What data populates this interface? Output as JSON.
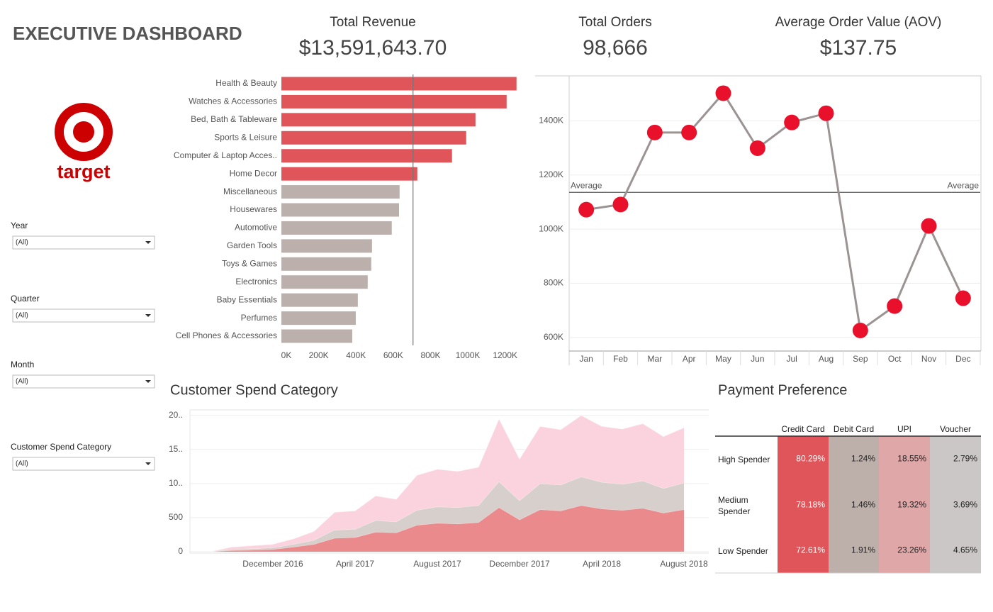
{
  "header": {
    "title": "EXECUTIVE DASHBOARD",
    "logo_text": "target"
  },
  "kpis": [
    {
      "label": "Total Revenue",
      "value": "$13,591,643.70"
    },
    {
      "label": "Total Orders",
      "value": "98,666"
    },
    {
      "label": "Average Order Value (AOV)",
      "value": "$137.75"
    }
  ],
  "filters": [
    {
      "label": "Year",
      "value": "(All)"
    },
    {
      "label": "Quarter",
      "value": "(All)"
    },
    {
      "label": "Month",
      "value": "(All)"
    },
    {
      "label": "Customer Spend Category",
      "value": "(All)"
    }
  ],
  "chart_data": [
    {
      "type": "bar",
      "orientation": "horizontal",
      "categories": [
        "Health & Beauty",
        "Watches & Accessories",
        "Bed, Bath & Tableware",
        "Sports & Leisure",
        "Computer & Laptop Acces..",
        "Home Decor",
        "Miscellaneous",
        "Housewares",
        "Automotive",
        "Garden Tools",
        "Toys & Games",
        "Electronics",
        "Baby Essentials",
        "Perfumes",
        "Cell Phones & Accessories"
      ],
      "values": [
        1261000,
        1208000,
        1041000,
        991000,
        915000,
        729000,
        634000,
        631000,
        592000,
        486000,
        482000,
        463000,
        410000,
        399000,
        380000
      ],
      "colors": [
        "#e05559",
        "#e05559",
        "#e05559",
        "#e05559",
        "#e05559",
        "#e05559",
        "#bbb0ab",
        "#bbb0ab",
        "#bbb0ab",
        "#bbb0ab",
        "#bbb0ab",
        "#bbb0ab",
        "#bbb0ab",
        "#bbb0ab",
        "#bbb0ab"
      ],
      "xlim": [
        0,
        1300000
      ],
      "xticks": [
        {
          "value": 0,
          "label": "0K"
        },
        {
          "value": 200000,
          "label": "200K"
        },
        {
          "value": 400000,
          "label": "400K"
        },
        {
          "value": 600000,
          "label": "600K"
        },
        {
          "value": 800000,
          "label": "800K"
        },
        {
          "value": 1000000,
          "label": "1000K"
        },
        {
          "value": 1200000,
          "label": "1200K"
        }
      ],
      "reference_line": 706000
    },
    {
      "type": "line",
      "categories": [
        "Jan",
        "Feb",
        "Mar",
        "Apr",
        "May",
        "Jun",
        "Jul",
        "Aug",
        "Sep",
        "Oct",
        "Nov",
        "Dec"
      ],
      "values": [
        1072000,
        1091000,
        1357000,
        1357000,
        1502000,
        1299000,
        1394000,
        1428000,
        626000,
        716000,
        1012000,
        745000
      ],
      "color": "#9c9393",
      "marker_color": "#e8102a",
      "ylim": [
        550000,
        1566000
      ],
      "yticks": [
        {
          "value": 600000,
          "label": "600K"
        },
        {
          "value": 800000,
          "label": "800K"
        },
        {
          "value": 1000000,
          "label": "1000K"
        },
        {
          "value": 1200000,
          "label": "1200K"
        },
        {
          "value": 1400000,
          "label": "1400K"
        }
      ],
      "grid": true,
      "average": {
        "value": 1136000,
        "label": "Average"
      }
    },
    {
      "type": "area",
      "stacked": true,
      "title": "Customer Spend Category",
      "categories": [
        null,
        null,
        null,
        "December 2016",
        null,
        null,
        null,
        "April 2017",
        null,
        null,
        null,
        "August 2017",
        null,
        null,
        null,
        "December 2017",
        null,
        null,
        null,
        "April 2018",
        null,
        null,
        null,
        "August 2018"
      ],
      "series": [
        {
          "color": "#ea8a8c",
          "values": [
            2,
            20,
            25,
            35,
            70,
            110,
            200,
            210,
            290,
            280,
            390,
            420,
            410,
            430,
            650,
            470,
            620,
            600,
            680,
            630,
            610,
            640,
            570,
            620
          ]
        },
        {
          "color": "#d6cfcc",
          "values": [
            1,
            15,
            20,
            25,
            40,
            60,
            120,
            120,
            170,
            160,
            220,
            240,
            240,
            250,
            380,
            280,
            380,
            380,
            420,
            390,
            380,
            400,
            360,
            390
          ]
        },
        {
          "color": "#fad3de",
          "values": [
            2,
            35,
            45,
            50,
            80,
            130,
            260,
            270,
            360,
            330,
            510,
            550,
            530,
            560,
            920,
            610,
            840,
            810,
            900,
            820,
            810,
            840,
            760,
            810
          ]
        }
      ],
      "ylim": [
        0,
        2080
      ],
      "yticks": [
        0,
        500,
        {
          "value": 1000,
          "label": "10.."
        },
        {
          "value": 1500,
          "label": "15.."
        },
        {
          "value": 2000,
          "label": "20.."
        }
      ],
      "grid": true
    }
  ],
  "payment_table": {
    "title": "Payment Preference",
    "columns": [
      "Credit Card",
      "Debit Card",
      "UPI",
      "Voucher"
    ],
    "rows": [
      {
        "label": "High Spender",
        "cells": [
          "80.29%",
          "1.24%",
          "18.55%",
          "2.79%"
        ]
      },
      {
        "label": "Medium Spender",
        "cells": [
          "78.18%",
          "1.46%",
          "19.32%",
          "3.69%"
        ]
      },
      {
        "label": "Low Spender",
        "cells": [
          "72.61%",
          "1.91%",
          "23.26%",
          "4.65%"
        ]
      }
    ]
  }
}
